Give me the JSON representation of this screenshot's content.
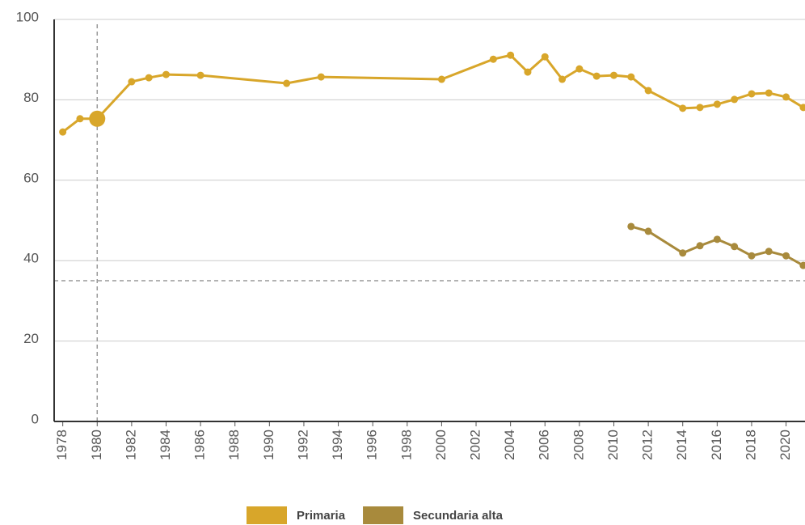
{
  "chart_data": {
    "type": "line",
    "x": [
      1978,
      1979,
      1980,
      1982,
      1983,
      1984,
      1986,
      1991,
      1993,
      2000,
      2003,
      2004,
      2005,
      2006,
      2007,
      2008,
      2009,
      2010,
      2011,
      2012,
      2014,
      2015,
      2016,
      2017,
      2018,
      2019,
      2020,
      2021
    ],
    "series": [
      {
        "name": "Primaria",
        "color": "#d8a62a",
        "values": [
          72.0,
          75.3,
          75.3,
          84.5,
          85.5,
          86.3,
          86.1,
          84.1,
          85.7,
          85.1,
          90.1,
          91.1,
          86.9,
          90.7,
          85.1,
          87.7,
          85.9,
          86.1,
          85.7,
          82.3,
          77.9,
          78.1,
          78.9,
          80.1,
          81.5,
          81.7,
          80.7,
          78.1
        ]
      },
      {
        "name": "Secundaria alta",
        "color": "#a88a3c",
        "values": [
          null,
          null,
          null,
          null,
          null,
          null,
          null,
          null,
          null,
          null,
          null,
          null,
          null,
          null,
          null,
          null,
          null,
          null,
          48.5,
          47.3,
          41.9,
          43.7,
          45.3,
          43.5,
          41.2,
          42.3,
          41.2,
          38.8
        ]
      }
    ],
    "xlim": [
      1977.5,
      2021.1
    ],
    "xticks": [
      1978,
      1980,
      1982,
      1984,
      1986,
      1988,
      1990,
      1992,
      1994,
      1996,
      1998,
      2000,
      2002,
      2004,
      2006,
      2008,
      2010,
      2012,
      2014,
      2016,
      2018,
      2020
    ],
    "ylim": [
      0,
      100
    ],
    "yticks": [
      0,
      20,
      40,
      60,
      80,
      100
    ],
    "grid": true,
    "reference_x": 1980,
    "reference_y": 35,
    "highlight_x": 1980,
    "legend": "bottom"
  }
}
